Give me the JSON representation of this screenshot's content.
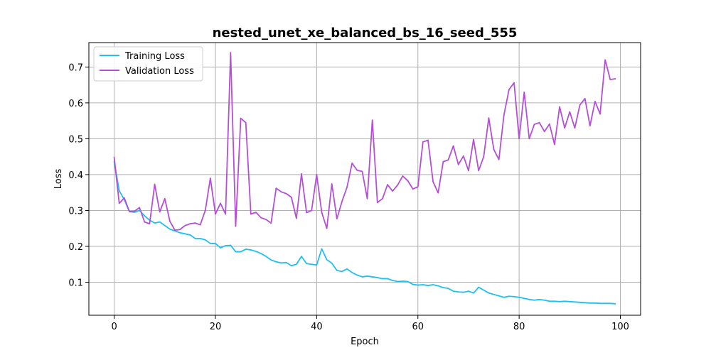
{
  "chart_data": {
    "type": "line",
    "title": "nested_unet_xe_balanced_bs_16_seed_555",
    "xlabel": "Epoch",
    "ylabel": "Loss",
    "xlim": [
      -5,
      104
    ],
    "ylim": [
      0.008,
      0.768
    ],
    "xticks": [
      0,
      20,
      40,
      60,
      80,
      100
    ],
    "yticks": [
      0.1,
      0.2,
      0.3,
      0.4,
      0.5,
      0.6,
      0.7
    ],
    "xtick_labels": [
      "0",
      "20",
      "40",
      "60",
      "80",
      "100"
    ],
    "ytick_labels": [
      "0.1",
      "0.2",
      "0.3",
      "0.4",
      "0.5",
      "0.6",
      "0.7"
    ],
    "grid": true,
    "legend_position": "top-left",
    "x": [
      0,
      1,
      2,
      3,
      4,
      5,
      6,
      7,
      8,
      9,
      10,
      11,
      12,
      13,
      14,
      15,
      16,
      17,
      18,
      19,
      20,
      21,
      22,
      23,
      24,
      25,
      26,
      27,
      28,
      29,
      30,
      31,
      32,
      33,
      34,
      35,
      36,
      37,
      38,
      39,
      40,
      41,
      42,
      43,
      44,
      45,
      46,
      47,
      48,
      49,
      50,
      51,
      52,
      53,
      54,
      55,
      56,
      57,
      58,
      59,
      60,
      61,
      62,
      63,
      64,
      65,
      66,
      67,
      68,
      69,
      70,
      71,
      72,
      73,
      74,
      75,
      76,
      77,
      78,
      79,
      80,
      81,
      82,
      83,
      84,
      85,
      86,
      87,
      88,
      89,
      90,
      91,
      92,
      93,
      94,
      95,
      96,
      97,
      98,
      99
    ],
    "series": [
      {
        "name": "Training Loss",
        "color": "#1fbff0",
        "values": [
          0.436,
          0.355,
          0.33,
          0.297,
          0.295,
          0.3,
          0.285,
          0.273,
          0.265,
          0.268,
          0.258,
          0.248,
          0.243,
          0.238,
          0.235,
          0.232,
          0.222,
          0.222,
          0.218,
          0.208,
          0.208,
          0.196,
          0.202,
          0.203,
          0.185,
          0.185,
          0.192,
          0.19,
          0.186,
          0.18,
          0.172,
          0.162,
          0.157,
          0.154,
          0.155,
          0.146,
          0.15,
          0.172,
          0.152,
          0.15,
          0.148,
          0.193,
          0.163,
          0.153,
          0.133,
          0.13,
          0.137,
          0.127,
          0.12,
          0.115,
          0.117,
          0.115,
          0.113,
          0.11,
          0.11,
          0.105,
          0.102,
          0.103,
          0.102,
          0.094,
          0.092,
          0.093,
          0.091,
          0.093,
          0.09,
          0.085,
          0.083,
          0.075,
          0.073,
          0.072,
          0.075,
          0.07,
          0.086,
          0.078,
          0.07,
          0.066,
          0.062,
          0.058,
          0.061,
          0.06,
          0.058,
          0.055,
          0.052,
          0.05,
          0.052,
          0.05,
          0.047,
          0.047,
          0.046,
          0.047,
          0.046,
          0.045,
          0.044,
          0.043,
          0.042,
          0.042,
          0.041,
          0.041,
          0.041,
          0.04
        ]
      },
      {
        "name": "Validation Loss",
        "color": "#b44fd6",
        "values": [
          0.448,
          0.32,
          0.335,
          0.297,
          0.298,
          0.308,
          0.268,
          0.263,
          0.373,
          0.296,
          0.333,
          0.27,
          0.245,
          0.247,
          0.258,
          0.263,
          0.265,
          0.26,
          0.3,
          0.39,
          0.29,
          0.32,
          0.29,
          0.74,
          0.256,
          0.557,
          0.545,
          0.29,
          0.295,
          0.28,
          0.275,
          0.265,
          0.362,
          0.352,
          0.347,
          0.337,
          0.278,
          0.402,
          0.294,
          0.3,
          0.4,
          0.295,
          0.25,
          0.374,
          0.277,
          0.325,
          0.365,
          0.432,
          0.412,
          0.409,
          0.333,
          0.552,
          0.322,
          0.333,
          0.372,
          0.354,
          0.371,
          0.396,
          0.383,
          0.36,
          0.366,
          0.491,
          0.496,
          0.38,
          0.349,
          0.436,
          0.441,
          0.48,
          0.428,
          0.452,
          0.411,
          0.498,
          0.411,
          0.45,
          0.558,
          0.47,
          0.442,
          0.566,
          0.637,
          0.656,
          0.5,
          0.63,
          0.5,
          0.54,
          0.545,
          0.52,
          0.541,
          0.484,
          0.589,
          0.53,
          0.575,
          0.53,
          0.594,
          0.612,
          0.536,
          0.604,
          0.569,
          0.72,
          0.665,
          0.667
        ]
      }
    ]
  }
}
